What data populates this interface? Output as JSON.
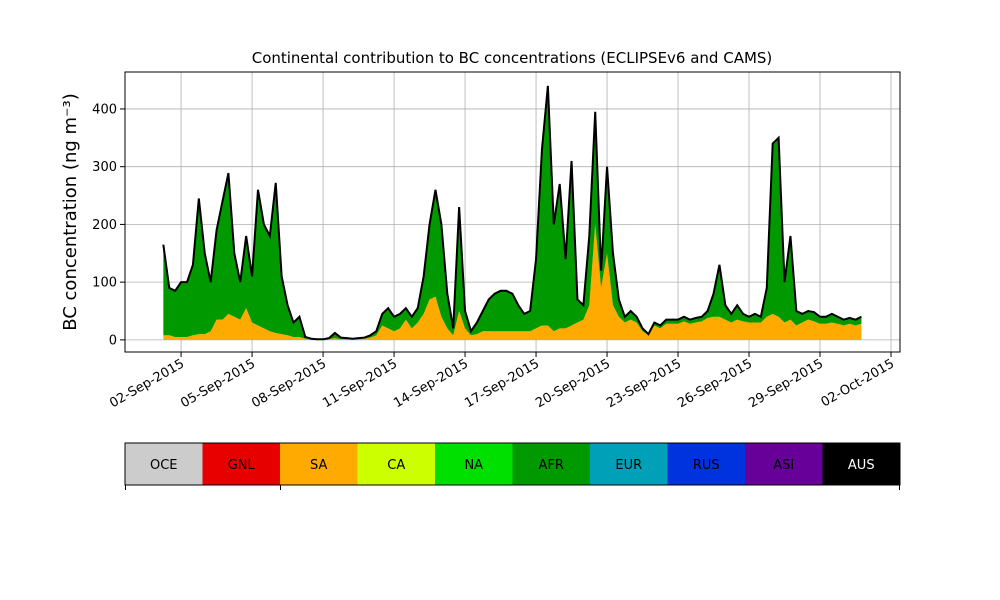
{
  "chart_data": [
    {
      "type": "stacked_area",
      "title": "Continental contribution to BC concentrations (ECLIPSEv6 and CAMS)",
      "y_label": "BC concentration (ng m⁻³)",
      "x": [
        1.25,
        1.5,
        1.75,
        2.0,
        2.25,
        2.5,
        2.75,
        3.0,
        3.25,
        3.5,
        3.75,
        4.0,
        4.25,
        4.5,
        4.75,
        5.0,
        5.25,
        5.5,
        5.75,
        6.0,
        6.25,
        6.5,
        6.75,
        7.0,
        7.25,
        7.5,
        7.75,
        8.0,
        8.25,
        8.5,
        8.75,
        9.0,
        9.25,
        9.5,
        9.75,
        10.0,
        10.25,
        10.5,
        10.75,
        11.0,
        11.25,
        11.5,
        11.75,
        12.0,
        12.25,
        12.5,
        12.75,
        13.0,
        13.25,
        13.5,
        13.75,
        14.0,
        14.25,
        14.5,
        14.75,
        15.0,
        15.25,
        15.5,
        15.75,
        16.0,
        16.25,
        16.5,
        16.75,
        17.0,
        17.25,
        17.5,
        17.75,
        18.0,
        18.25,
        18.5,
        18.75,
        19.0,
        19.25,
        19.5,
        19.75,
        20.0,
        20.25,
        20.5,
        20.75,
        21.0,
        21.25,
        21.5,
        21.75,
        22.0,
        22.25,
        22.5,
        22.75,
        23.0,
        23.25,
        23.5,
        23.75,
        24.0,
        24.25,
        24.5,
        24.75,
        25.0,
        25.25,
        25.5,
        25.75,
        26.0,
        26.25,
        26.5,
        26.75,
        27.0,
        27.25,
        27.5,
        27.75,
        28.0,
        28.25,
        28.5,
        28.75,
        29.0,
        29.25,
        29.5,
        29.75,
        30.0,
        30.25,
        30.5,
        30.75
      ],
      "series": [
        {
          "name": "SA",
          "values": [
            8,
            8,
            5,
            5,
            5,
            8,
            10,
            10,
            15,
            35,
            35,
            45,
            40,
            35,
            55,
            30,
            25,
            20,
            15,
            12,
            10,
            8,
            5,
            5,
            2,
            1,
            1,
            0,
            1,
            3,
            1,
            1,
            1,
            1,
            2,
            4,
            8,
            25,
            20,
            15,
            20,
            35,
            20,
            30,
            45,
            70,
            75,
            40,
            20,
            8,
            50,
            20,
            8,
            10,
            15,
            15,
            15,
            15,
            15,
            15,
            15,
            15,
            15,
            20,
            25,
            25,
            15,
            20,
            20,
            25,
            30,
            35,
            60,
            200,
            90,
            150,
            60,
            40,
            30,
            35,
            30,
            15,
            8,
            25,
            20,
            28,
            28,
            28,
            32,
            28,
            30,
            32,
            38,
            40,
            40,
            35,
            30,
            35,
            32,
            30,
            30,
            30,
            40,
            45,
            40,
            30,
            35,
            25,
            30,
            35,
            32,
            28,
            28,
            30,
            28,
            25,
            28,
            25,
            28
          ]
        },
        {
          "name": "AFR",
          "values": [
            157,
            82,
            80,
            95,
            95,
            122,
            235,
            140,
            85,
            155,
            205,
            244,
            110,
            65,
            125,
            80,
            235,
            180,
            165,
            260,
            100,
            52,
            25,
            35,
            3,
            1,
            0,
            1,
            2,
            9,
            3,
            2,
            1,
            2,
            2,
            4,
            7,
            20,
            35,
            25,
            25,
            20,
            20,
            25,
            65,
            130,
            185,
            160,
            60,
            12,
            180,
            30,
            7,
            20,
            35,
            55,
            65,
            70,
            70,
            65,
            45,
            30,
            35,
            120,
            305,
            415,
            185,
            250,
            120,
            285,
            40,
            25,
            120,
            195,
            30,
            150,
            90,
            30,
            10,
            15,
            10,
            5,
            2,
            5,
            5,
            7,
            7,
            7,
            8,
            7,
            8,
            8,
            12,
            40,
            90,
            25,
            15,
            25,
            13,
            10,
            15,
            10,
            50,
            295,
            310,
            70,
            145,
            25,
            15,
            15,
            16,
            12,
            12,
            15,
            12,
            10,
            10,
            10,
            12
          ]
        }
      ],
      "outline_color": "#000000",
      "xlim": [
        -0.37,
        32.38
      ],
      "xticks": [
        {
          "value": 2,
          "label": "02-Sep-2015"
        },
        {
          "value": 5,
          "label": "05-Sep-2015"
        },
        {
          "value": 8,
          "label": "08-Sep-2015"
        },
        {
          "value": 11,
          "label": "11-Sep-2015"
        },
        {
          "value": 14,
          "label": "14-Sep-2015"
        },
        {
          "value": 17,
          "label": "17-Sep-2015"
        },
        {
          "value": 20,
          "label": "20-Sep-2015"
        },
        {
          "value": 23,
          "label": "23-Sep-2015"
        },
        {
          "value": 26,
          "label": "26-Sep-2015"
        },
        {
          "value": 29,
          "label": "29-Sep-2015"
        },
        {
          "value": 32,
          "label": "02-Oct-2015"
        }
      ],
      "ylim": [
        -21,
        464
      ],
      "yticks": [
        0,
        100,
        200,
        300,
        400
      ],
      "grid": true
    },
    {
      "type": "colorbar",
      "categories": [
        "OCE",
        "GNL",
        "SA",
        "CA",
        "NA",
        "AFR",
        "EUR",
        "RUS",
        "ASI",
        "AUS"
      ],
      "colors": [
        "#cccccc",
        "#e60000",
        "#ffaa00",
        "#ccff00",
        "#00e000",
        "#009900",
        "#00a0b8",
        "#0033dd",
        "#660099",
        "#000000"
      ]
    }
  ]
}
